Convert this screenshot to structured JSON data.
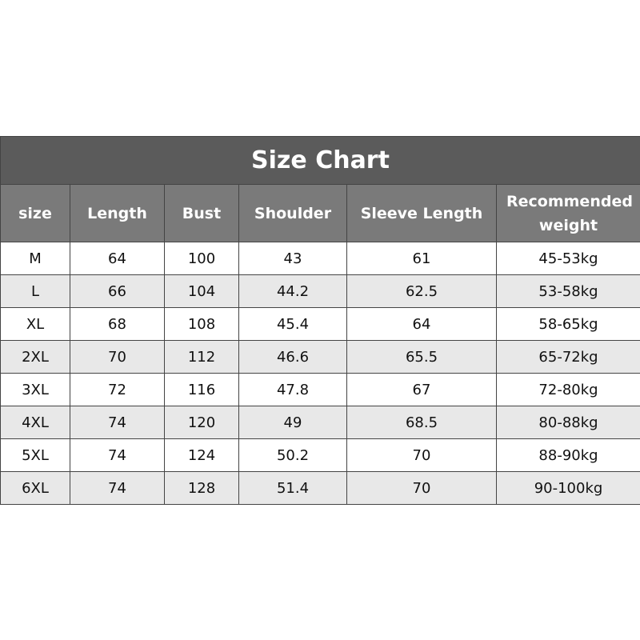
{
  "table": {
    "title": "Size Chart",
    "header": [
      "size",
      "Length",
      "Bust",
      "Shoulder",
      "Sleeve Length",
      "Recommended weight"
    ],
    "rows": [
      [
        "M",
        "64",
        "100",
        "43",
        "61",
        "45-53kg"
      ],
      [
        "L",
        "66",
        "104",
        "44.2",
        "62.5",
        "53-58kg"
      ],
      [
        "XL",
        "68",
        "108",
        "45.4",
        "64",
        "58-65kg"
      ],
      [
        "2XL",
        "70",
        "112",
        "46.6",
        "65.5",
        "65-72kg"
      ],
      [
        "3XL",
        "72",
        "116",
        "47.8",
        "67",
        "72-80kg"
      ],
      [
        "4XL",
        "74",
        "120",
        "49",
        "68.5",
        "80-88kg"
      ],
      [
        "5XL",
        "74",
        "124",
        "50.2",
        "70",
        "88-90kg"
      ],
      [
        "6XL",
        "74",
        "128",
        "51.4",
        "70",
        "90-100kg"
      ]
    ]
  }
}
